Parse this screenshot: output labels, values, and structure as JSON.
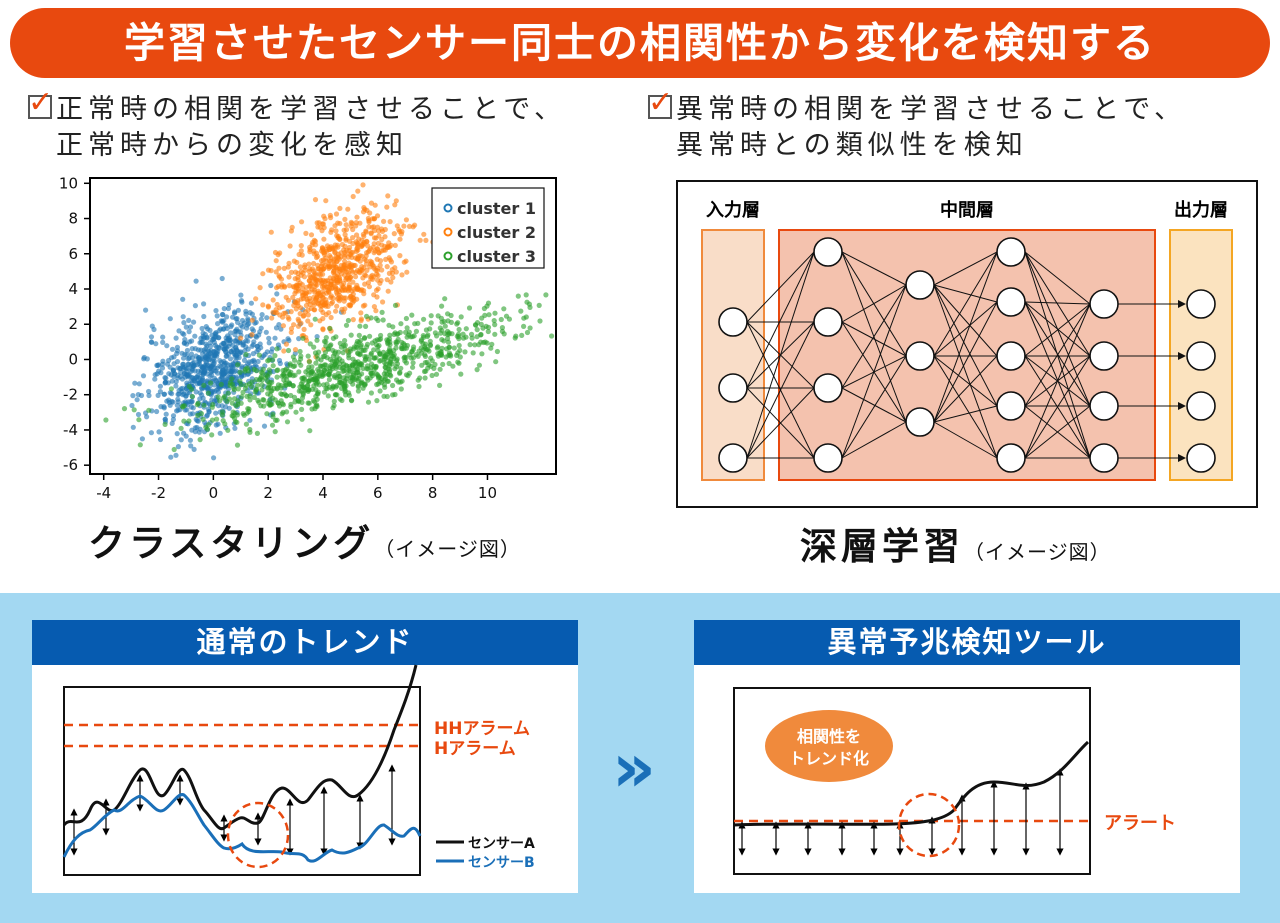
{
  "title": "学習させたセンサー同士の相関性から変化を検知する",
  "left": {
    "lead_line1": "正常時の相関を学習させることで、",
    "lead_line2": "正常時からの変化を感知",
    "caption_main": "クラスタリング",
    "caption_note": "（イメージ図）"
  },
  "right": {
    "lead_line1": "異常時の相関を学習させることで、",
    "lead_line2": "異常時との類似性を検知",
    "caption_main": "深層学習",
    "caption_note": "（イメージ図）"
  },
  "check_mark": "✓",
  "chart_data": {
    "type": "scatter",
    "xlim": [
      -4.5,
      12.5
    ],
    "ylim": [
      -6.5,
      10.3
    ],
    "xticks": [
      -4,
      -2,
      0,
      2,
      4,
      6,
      8,
      10
    ],
    "yticks": [
      -6,
      -4,
      -2,
      0,
      2,
      4,
      6,
      8,
      10
    ],
    "legend_position": "top-right",
    "series": [
      {
        "name": "cluster 1",
        "color": "#1f77b4",
        "center": [
          0,
          -0.5
        ],
        "spread": [
          1.2,
          1.6
        ],
        "count": 800
      },
      {
        "name": "cluster 2",
        "color": "#ff7f0e",
        "center": [
          4.5,
          5
        ],
        "spread": [
          1.2,
          1.5
        ],
        "count": 700
      },
      {
        "name": "cluster 3",
        "color": "#2ca02c",
        "center": [
          5,
          -0.5
        ],
        "spread": [
          2.8,
          1.0
        ],
        "count": 900
      }
    ]
  },
  "nn": {
    "input_label": "入力層",
    "hidden_label": "中間層",
    "output_label": "出力層"
  },
  "normal_trend": {
    "title": "通常のトレンド",
    "hh_alarm": "HHアラーム",
    "h_alarm": "Hアラーム",
    "sensor_a": "センサーA",
    "sensor_b": "センサーB"
  },
  "arrow_glyph": "»",
  "anomaly_tool": {
    "title": "異常予兆検知ツール",
    "bubble_line1": "相関性を",
    "bubble_line2": "トレンド化",
    "alert": "アラート"
  },
  "colors": {
    "accent": "#e8490f",
    "navy": "#065bb0",
    "sky": "#a3d8f2",
    "peach": "#f4c2ae",
    "input_fill": "#f9ddc8",
    "output_fill": "#fbe3bf"
  }
}
